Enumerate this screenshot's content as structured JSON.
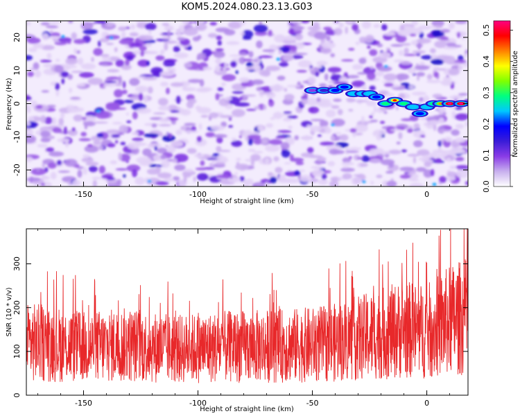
{
  "title": "KOM5.2024.080.23.13.G03",
  "chart_data": [
    {
      "type": "heatmap",
      "xlabel": "Height of straight line (km)",
      "ylabel": "Frequency (Hz)",
      "xlim": [
        -175,
        18
      ],
      "ylim": [
        -25,
        25
      ],
      "x_ticks": [
        -150,
        -100,
        -50,
        0
      ],
      "y_ticks": [
        -20,
        -10,
        0,
        10,
        20
      ],
      "colorbar": {
        "label": "Normalized spectral amplitude",
        "range": [
          0.0,
          0.53
        ],
        "ticks": [
          0.0,
          0.1,
          0.2,
          0.3,
          0.4,
          0.5
        ],
        "colors": [
          "#ffffff",
          "#c8b0ee",
          "#8a3ce6",
          "#3a1cd8",
          "#0000ff",
          "#00c8ff",
          "#00ff80",
          "#80ff00",
          "#ffff00",
          "#ff8000",
          "#ff0000",
          "#ff0080"
        ]
      },
      "ridge": {
        "x": [
          -50,
          -45,
          -40,
          -36,
          -32,
          -28,
          -25,
          -22,
          -18,
          -14,
          -10,
          -6,
          -3,
          0,
          3,
          6,
          10,
          15
        ],
        "y": [
          4,
          4,
          4,
          5,
          3,
          3,
          3,
          2,
          0,
          1,
          0,
          -1,
          -3,
          -1,
          0,
          0,
          0,
          0
        ],
        "amplitude": [
          0.12,
          0.14,
          0.18,
          0.2,
          0.26,
          0.24,
          0.22,
          0.2,
          0.3,
          0.4,
          0.28,
          0.22,
          0.18,
          0.24,
          0.3,
          0.36,
          0.48,
          0.5
        ]
      }
    },
    {
      "type": "line",
      "xlabel": "Height of straight line (km)",
      "ylabel": "SNR (10 * v/v)",
      "xlim": [
        -175,
        18
      ],
      "ylim": [
        0,
        380
      ],
      "x_ticks": [
        -150,
        -100,
        -50,
        0
      ],
      "y_ticks": [
        0,
        100,
        200,
        300
      ],
      "color": "#e8282a",
      "series": [
        {
          "x": [
            -170,
            -150,
            -130,
            -110,
            -90,
            -70,
            -50,
            -40,
            -30,
            -20,
            -10,
            0,
            10,
            17
          ],
          "values": [
            120,
            110,
            115,
            105,
            110,
            112,
            115,
            120,
            130,
            140,
            150,
            145,
            170,
            180
          ]
        }
      ]
    }
  ]
}
